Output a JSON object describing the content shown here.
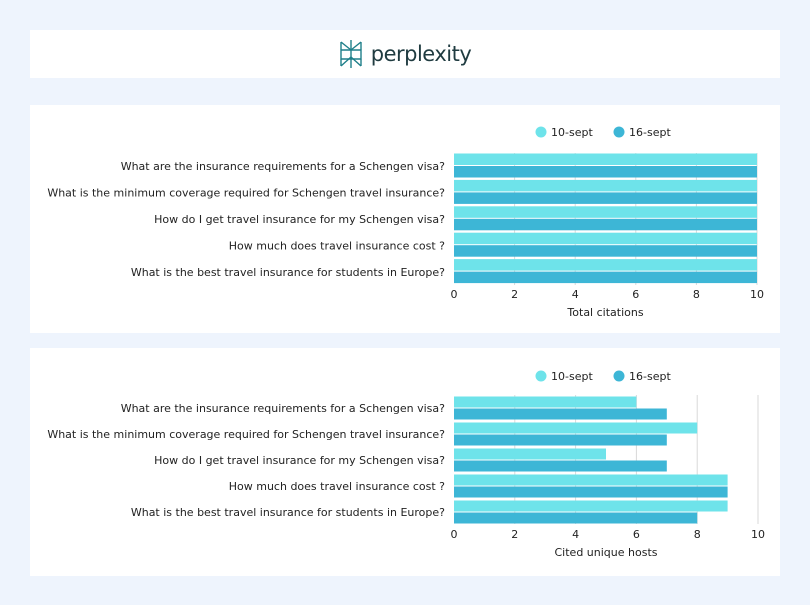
{
  "header": {
    "logo_text": "perplexity"
  },
  "colors": {
    "series1": "#6ee3ea",
    "series2": "#3db6d6",
    "logo": "#1f7f8a"
  },
  "chart_data": [
    {
      "type": "bar",
      "orientation": "horizontal",
      "categories": [
        "What are the insurance requirements for a Schengen visa?",
        "What is the minimum coverage required for Schengen travel insurance?",
        "How do I get travel insurance for my Schengen visa?",
        "How much does travel insurance cost ?",
        "What is the best travel insurance for students in Europe?"
      ],
      "series": [
        {
          "name": "10-sept",
          "values": [
            10,
            10,
            10,
            10,
            10
          ]
        },
        {
          "name": "16-sept",
          "values": [
            10,
            10,
            10,
            10,
            10
          ]
        }
      ],
      "xlabel": "Total citations",
      "xlim": [
        0,
        10
      ],
      "xticks": [
        0,
        2,
        4,
        6,
        8,
        10
      ],
      "legend_position": "top"
    },
    {
      "type": "bar",
      "orientation": "horizontal",
      "categories": [
        "What are the insurance requirements for a Schengen visa?",
        "What is the minimum coverage required for Schengen travel insurance?",
        "How do I get travel insurance for my Schengen visa?",
        "How much does travel insurance cost ?",
        "What is the best travel insurance for students in Europe?"
      ],
      "series": [
        {
          "name": "10-sept",
          "values": [
            6,
            8,
            5,
            9,
            9
          ]
        },
        {
          "name": "16-sept",
          "values": [
            7,
            7,
            7,
            9,
            8
          ]
        }
      ],
      "xlabel": "Cited unique hosts",
      "xlim": [
        0,
        10
      ],
      "xticks": [
        0,
        2,
        4,
        6,
        8,
        10
      ],
      "legend_position": "top"
    }
  ]
}
